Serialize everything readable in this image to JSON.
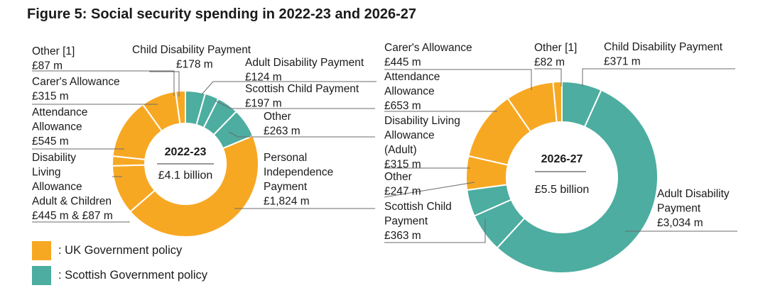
{
  "figure_title": "Figure 5: Social security spending in 2022-23 and 2026-27",
  "colors": {
    "uk": "#f7a823",
    "scottish": "#4cada0"
  },
  "legend": [
    {
      "label": ": UK Government policy",
      "color_key": "uk"
    },
    {
      "label": ": Scottish Government policy",
      "color_key": "scottish"
    }
  ],
  "chart_data": [
    {
      "type": "pie",
      "center_title": "2022-23",
      "center_total": "£4.1 billion",
      "slices": [
        {
          "lines": [
            "Child Disability Payment",
            "£178 m"
          ],
          "value": 178,
          "policy": "scottish"
        },
        {
          "lines": [
            "Adult Disability Payment",
            "£124 m"
          ],
          "value": 124,
          "policy": "scottish"
        },
        {
          "lines": [
            "Scottish Child Payment",
            "£197 m"
          ],
          "value": 197,
          "policy": "scottish"
        },
        {
          "lines": [
            "Other",
            "£263 m"
          ],
          "value": 263,
          "policy": "scottish"
        },
        {
          "lines": [
            "Personal",
            "Independence",
            "Payment",
            "£1,824 m"
          ],
          "value": 1824,
          "policy": "uk"
        },
        {
          "lines": [
            "Disability",
            "Living",
            "Allowance",
            "Adult & Children",
            "£445 m & £87 m"
          ],
          "value": 445,
          "policy": "uk"
        },
        {
          "lines": [],
          "value": 87,
          "policy": "uk"
        },
        {
          "lines": [
            "Attendance",
            "Allowance",
            "£545 m"
          ],
          "value": 545,
          "policy": "uk"
        },
        {
          "lines": [
            "Carer's Allowance",
            "£315 m"
          ],
          "value": 315,
          "policy": "uk"
        },
        {
          "lines": [
            "Other [1]",
            "£87 m"
          ],
          "value": 87,
          "policy": "uk"
        }
      ]
    },
    {
      "type": "pie",
      "center_title": "2026-27",
      "center_total": "£5.5 billion",
      "slices": [
        {
          "lines": [
            "Child Disability Payment",
            "£371 m"
          ],
          "value": 371,
          "policy": "scottish"
        },
        {
          "lines": [
            "Adult Disability",
            "Payment",
            "£3,034 m"
          ],
          "value": 3034,
          "policy": "scottish"
        },
        {
          "lines": [
            "Scottish Child",
            "Payment",
            "£363 m"
          ],
          "value": 363,
          "policy": "scottish"
        },
        {
          "lines": [
            "Other",
            "£247 m"
          ],
          "value": 247,
          "policy": "scottish"
        },
        {
          "lines": [
            "Disability Living",
            "Allowance",
            "(Adult)",
            "£315 m"
          ],
          "value": 315,
          "policy": "uk"
        },
        {
          "lines": [
            "Attendance",
            "Allowance",
            "£653 m"
          ],
          "value": 653,
          "policy": "uk"
        },
        {
          "lines": [
            "Carer's Allowance",
            "£445 m"
          ],
          "value": 445,
          "policy": "uk"
        },
        {
          "lines": [
            "Other [1]",
            "£82 m"
          ],
          "value": 82,
          "policy": "uk"
        }
      ]
    }
  ]
}
